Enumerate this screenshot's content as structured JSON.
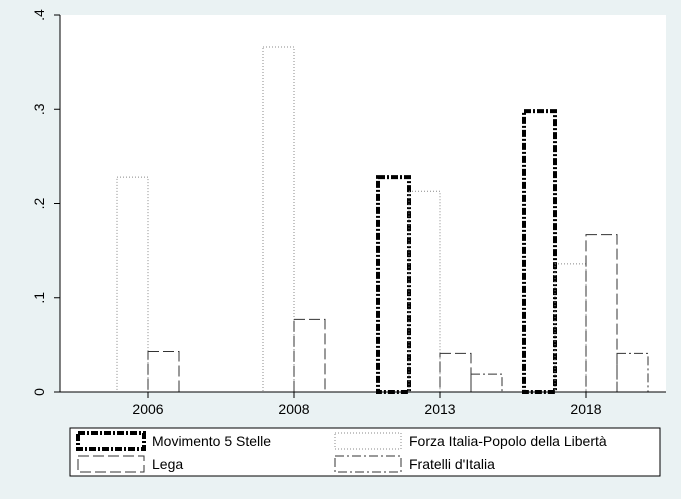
{
  "chart_data": {
    "type": "bar",
    "title": "",
    "xlabel": "",
    "ylabel": "",
    "categories": [
      "2006",
      "2008",
      "2013",
      "2018"
    ],
    "ylim": [
      0,
      0.4
    ],
    "yticks": [
      0,
      0.1,
      0.2,
      0.3,
      0.4
    ],
    "ytick_labels": [
      "0",
      ".1",
      ".2",
      ".3",
      ".4"
    ],
    "grid": false,
    "legend_position": "bottom",
    "series": [
      {
        "name": "Movimento 5 Stelle",
        "style": "dash-dot-heavy",
        "color": "#000000",
        "values": [
          null,
          null,
          0.228,
          0.298
        ]
      },
      {
        "name": "Forza Italia-Popolo della Libertà",
        "style": "dotted",
        "color": "#888888",
        "values": [
          0.228,
          0.366,
          0.213,
          0.136
        ]
      },
      {
        "name": "Lega",
        "style": "long-dash",
        "color": "#333333",
        "values": [
          0.043,
          0.077,
          0.041,
          0.167
        ]
      },
      {
        "name": "Fratelli d'Italia",
        "style": "dash-dot",
        "color": "#333333",
        "values": [
          null,
          null,
          0.019,
          0.041
        ]
      }
    ]
  }
}
